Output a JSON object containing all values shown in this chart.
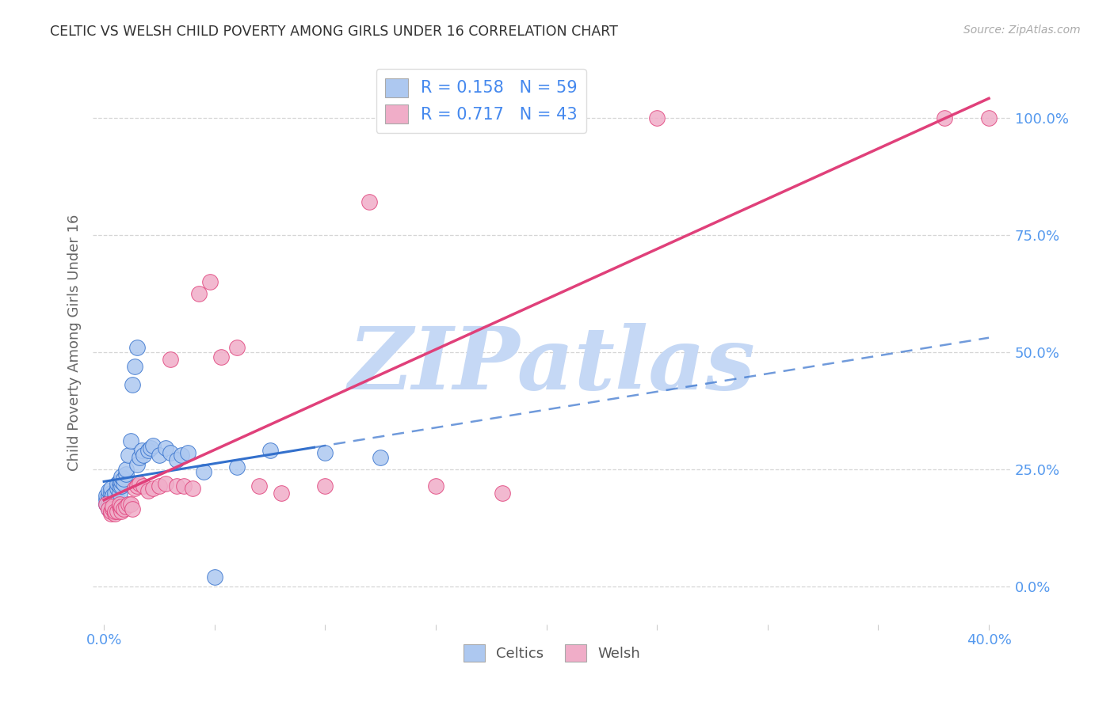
{
  "title": "CELTIC VS WELSH CHILD POVERTY AMONG GIRLS UNDER 16 CORRELATION CHART",
  "source": "Source: ZipAtlas.com",
  "ylabel": "Child Poverty Among Girls Under 16",
  "xlim": [
    -0.005,
    0.41
  ],
  "ylim": [
    -0.08,
    1.12
  ],
  "yticks": [
    0.0,
    0.25,
    0.5,
    0.75,
    1.0
  ],
  "ytick_labels": [
    "0.0%",
    "25.0%",
    "50.0%",
    "75.0%",
    "100.0%"
  ],
  "xticks": [
    0.0,
    0.05,
    0.1,
    0.15,
    0.2,
    0.25,
    0.3,
    0.35,
    0.4
  ],
  "xtick_labels": [
    "0.0%",
    "",
    "",
    "",
    "",
    "",
    "",
    "",
    "40.0%"
  ],
  "watermark": "ZIPatlas",
  "celtic_color": "#adc8f0",
  "welsh_color": "#f0adc8",
  "celtic_line_color": "#3370cc",
  "welsh_line_color": "#e0407a",
  "title_color": "#333333",
  "axis_label_color": "#666666",
  "tick_color": "#5599ee",
  "grid_color": "#cccccc",
  "watermark_color": "#c5d8f5",
  "background_color": "#ffffff",
  "celtic_x": [
    0.001,
    0.001,
    0.001,
    0.002,
    0.002,
    0.002,
    0.002,
    0.002,
    0.003,
    0.003,
    0.003,
    0.003,
    0.003,
    0.004,
    0.004,
    0.004,
    0.004,
    0.005,
    0.005,
    0.005,
    0.005,
    0.006,
    0.006,
    0.006,
    0.006,
    0.007,
    0.007,
    0.007,
    0.008,
    0.008,
    0.008,
    0.009,
    0.009,
    0.01,
    0.01,
    0.011,
    0.012,
    0.013,
    0.014,
    0.015,
    0.015,
    0.016,
    0.017,
    0.018,
    0.02,
    0.021,
    0.022,
    0.025,
    0.028,
    0.03,
    0.033,
    0.035,
    0.038,
    0.045,
    0.05,
    0.06,
    0.075,
    0.1,
    0.125
  ],
  "celtic_y": [
    0.175,
    0.185,
    0.195,
    0.165,
    0.175,
    0.185,
    0.195,
    0.205,
    0.17,
    0.18,
    0.19,
    0.2,
    0.21,
    0.165,
    0.175,
    0.185,
    0.195,
    0.17,
    0.18,
    0.19,
    0.2,
    0.175,
    0.185,
    0.21,
    0.22,
    0.2,
    0.215,
    0.225,
    0.215,
    0.225,
    0.235,
    0.22,
    0.23,
    0.24,
    0.25,
    0.28,
    0.31,
    0.43,
    0.47,
    0.51,
    0.26,
    0.275,
    0.29,
    0.28,
    0.29,
    0.295,
    0.3,
    0.28,
    0.295,
    0.285,
    0.27,
    0.28,
    0.285,
    0.245,
    0.02,
    0.255,
    0.29,
    0.285,
    0.275
  ],
  "welsh_x": [
    0.001,
    0.002,
    0.003,
    0.003,
    0.004,
    0.004,
    0.005,
    0.005,
    0.006,
    0.007,
    0.007,
    0.008,
    0.008,
    0.009,
    0.01,
    0.011,
    0.012,
    0.013,
    0.014,
    0.015,
    0.016,
    0.018,
    0.02,
    0.022,
    0.025,
    0.028,
    0.03,
    0.033,
    0.036,
    0.04,
    0.043,
    0.048,
    0.053,
    0.06,
    0.07,
    0.08,
    0.1,
    0.12,
    0.15,
    0.18,
    0.25,
    0.38,
    0.4
  ],
  "welsh_y": [
    0.175,
    0.165,
    0.155,
    0.16,
    0.165,
    0.17,
    0.155,
    0.16,
    0.16,
    0.17,
    0.175,
    0.16,
    0.17,
    0.165,
    0.17,
    0.175,
    0.175,
    0.165,
    0.21,
    0.215,
    0.22,
    0.215,
    0.205,
    0.21,
    0.215,
    0.22,
    0.485,
    0.215,
    0.215,
    0.21,
    0.625,
    0.65,
    0.49,
    0.51,
    0.215,
    0.2,
    0.215,
    0.82,
    0.215,
    0.2,
    1.0,
    1.0,
    1.0
  ]
}
